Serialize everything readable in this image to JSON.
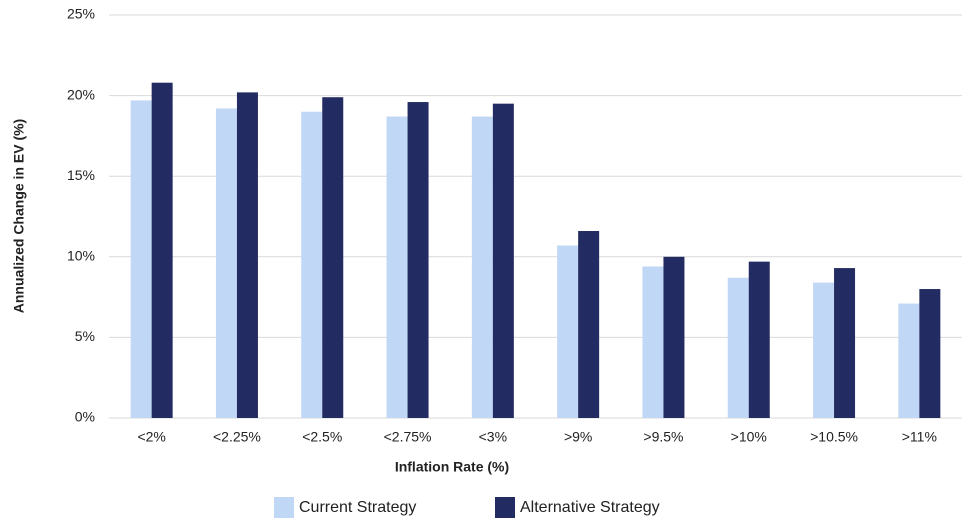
{
  "chart_data": {
    "type": "bar",
    "x_label": "Inflation Rate (%)",
    "y_label": "Annualized Change in EV (%)",
    "categories": [
      "<2%",
      "<2.25%",
      "<2.5%",
      "<2.75%",
      "<3%",
      ">9%",
      ">9.5%",
      ">10%",
      ">10.5%",
      ">11%"
    ],
    "series": [
      {
        "name": "Current Strategy",
        "color": "#c0d7f5",
        "values": [
          19.7,
          19.2,
          19.0,
          18.7,
          18.7,
          10.7,
          9.4,
          8.7,
          8.4,
          7.1
        ]
      },
      {
        "name": "Alternative Strategy",
        "color": "#232c62",
        "values": [
          20.8,
          20.2,
          19.9,
          19.6,
          19.5,
          11.6,
          10.0,
          9.7,
          9.3,
          8.0
        ]
      }
    ],
    "ylim": [
      0,
      25
    ],
    "yticks": [
      {
        "value": 0,
        "label": "0%"
      },
      {
        "value": 5,
        "label": "5%"
      },
      {
        "value": 10,
        "label": "10%"
      },
      {
        "value": 15,
        "label": "15%"
      },
      {
        "value": 20,
        "label": "20%"
      },
      {
        "value": 25,
        "label": "25%"
      }
    ],
    "grid": true,
    "legend": "bottom"
  }
}
